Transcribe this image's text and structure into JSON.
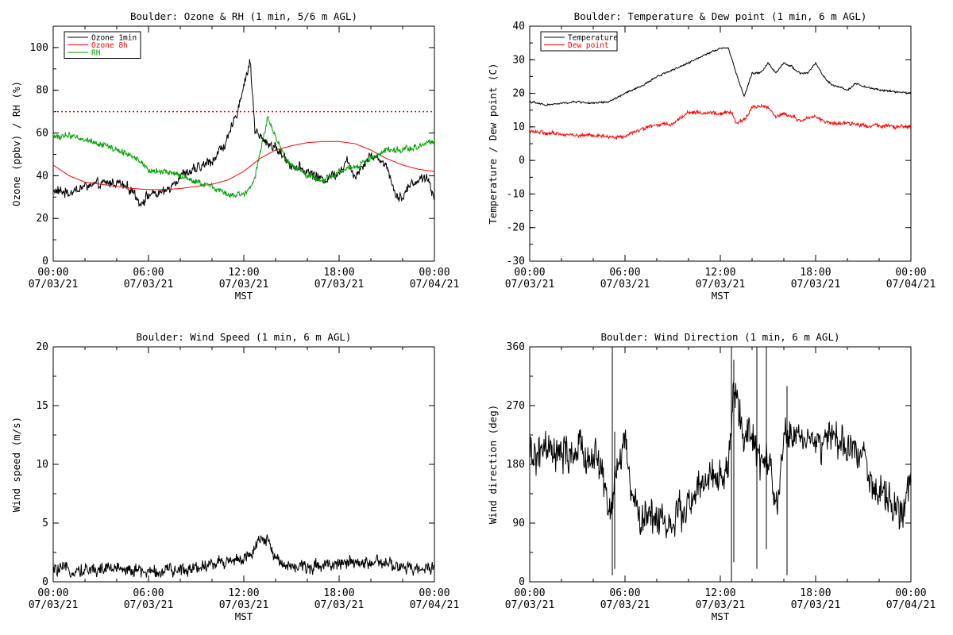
{
  "chart_data": [
    {
      "type": "line",
      "title": "Boulder: Ozone & RH (1 min, 5/6 m AGL)",
      "ylabel": "Ozone (ppbv) / RH (%)",
      "xlabel": "MST",
      "xlim": [
        0,
        24
      ],
      "ylim": [
        0,
        110
      ],
      "yticks": [
        0,
        20,
        40,
        60,
        80,
        100
      ],
      "xticks": [
        {
          "t": 0,
          "time": "00:00",
          "date": "07/03/21"
        },
        {
          "t": 6,
          "time": "06:00",
          "date": "07/03/21"
        },
        {
          "t": 12,
          "time": "12:00",
          "date": "07/03/21"
        },
        {
          "t": 18,
          "time": "18:00",
          "date": "07/03/21"
        },
        {
          "t": 24,
          "time": "00:00",
          "date": "07/04/21"
        }
      ],
      "legend": "top-left",
      "reference_line": {
        "y": 70,
        "color": "#ff0000",
        "style": "dotted"
      },
      "series": [
        {
          "name": "Ozone 1min",
          "color": "#000000",
          "noise": 2.5,
          "points": [
            [
              0,
              33
            ],
            [
              1,
              32
            ],
            [
              2,
              35
            ],
            [
              3,
              36
            ],
            [
              4,
              37
            ],
            [
              5,
              33
            ],
            [
              5.5,
              27
            ],
            [
              6,
              31
            ],
            [
              7,
              32
            ],
            [
              8,
              40
            ],
            [
              9,
              43
            ],
            [
              10,
              47
            ],
            [
              11,
              57
            ],
            [
              11.5,
              68
            ],
            [
              12,
              82
            ],
            [
              12.4,
              94
            ],
            [
              12.7,
              62
            ],
            [
              13,
              58
            ],
            [
              14,
              53
            ],
            [
              15,
              45
            ],
            [
              16,
              42
            ],
            [
              17,
              38
            ],
            [
              18,
              42
            ],
            [
              18.5,
              47
            ],
            [
              19,
              40
            ],
            [
              20,
              50
            ],
            [
              21,
              45
            ],
            [
              21.5,
              32
            ],
            [
              22,
              30
            ],
            [
              22.5,
              36
            ],
            [
              23,
              38
            ],
            [
              23.5,
              40
            ],
            [
              24,
              29
            ]
          ]
        },
        {
          "name": "Ozone 8h",
          "color": "#ff0000",
          "noise": 0,
          "points": [
            [
              0,
              45
            ],
            [
              1,
              40
            ],
            [
              2,
              37
            ],
            [
              3,
              36
            ],
            [
              4,
              35
            ],
            [
              5,
              34
            ],
            [
              6,
              33.5
            ],
            [
              7,
              33.5
            ],
            [
              8,
              34
            ],
            [
              9,
              35
            ],
            [
              10,
              36
            ],
            [
              11,
              38
            ],
            [
              12,
              42
            ],
            [
              13,
              48
            ],
            [
              14,
              52
            ],
            [
              15,
              54
            ],
            [
              16,
              55.5
            ],
            [
              17,
              56
            ],
            [
              18,
              56
            ],
            [
              19,
              55
            ],
            [
              20,
              52
            ],
            [
              21,
              48
            ],
            [
              22,
              45
            ],
            [
              23,
              43
            ],
            [
              24,
              42
            ]
          ]
        },
        {
          "name": "RH",
          "color": "#00a000",
          "noise": 1.5,
          "points": [
            [
              0,
              58
            ],
            [
              1,
              59
            ],
            [
              2,
              57
            ],
            [
              3,
              55
            ],
            [
              4,
              52
            ],
            [
              5,
              49
            ],
            [
              5.5,
              47
            ],
            [
              6,
              42
            ],
            [
              7,
              42
            ],
            [
              8,
              40
            ],
            [
              9,
              37
            ],
            [
              10,
              35
            ],
            [
              11,
              31
            ],
            [
              12,
              31
            ],
            [
              12.6,
              36
            ],
            [
              13,
              50
            ],
            [
              13.5,
              67
            ],
            [
              14,
              58
            ],
            [
              14.5,
              50
            ],
            [
              15,
              45
            ],
            [
              16,
              40
            ],
            [
              17,
              38
            ],
            [
              18,
              42
            ],
            [
              19,
              44
            ],
            [
              20,
              48
            ],
            [
              21,
              52
            ],
            [
              22,
              52
            ],
            [
              23,
              54
            ],
            [
              24,
              56
            ]
          ]
        }
      ]
    },
    {
      "type": "line",
      "title": "Boulder: Temperature & Dew point (1 min, 6 m AGL)",
      "ylabel": "Temperature / Dew point (C)",
      "xlabel": "MST",
      "xlim": [
        0,
        24
      ],
      "ylim": [
        -30,
        40
      ],
      "yticks": [
        -30,
        -20,
        -10,
        0,
        10,
        20,
        30,
        40
      ],
      "xticks": [
        {
          "t": 0,
          "time": "00:00",
          "date": "07/03/21"
        },
        {
          "t": 6,
          "time": "06:00",
          "date": "07/03/21"
        },
        {
          "t": 12,
          "time": "12:00",
          "date": "07/03/21"
        },
        {
          "t": 18,
          "time": "18:00",
          "date": "07/03/21"
        },
        {
          "t": 24,
          "time": "00:00",
          "date": "07/04/21"
        }
      ],
      "legend": "top-left",
      "series": [
        {
          "name": "Temperature",
          "color": "#000000",
          "noise": 0.3,
          "points": [
            [
              0,
              17.5
            ],
            [
              1,
              16.5
            ],
            [
              2,
              17
            ],
            [
              3,
              17.5
            ],
            [
              4,
              17
            ],
            [
              5,
              17.5
            ],
            [
              6,
              20
            ],
            [
              7,
              22
            ],
            [
              8,
              25
            ],
            [
              9,
              27
            ],
            [
              10,
              29
            ],
            [
              11,
              31.5
            ],
            [
              12,
              33.5
            ],
            [
              12.5,
              33.5
            ],
            [
              13,
              26
            ],
            [
              13.5,
              19
            ],
            [
              14,
              26
            ],
            [
              14.5,
              26
            ],
            [
              15,
              29
            ],
            [
              15.5,
              26
            ],
            [
              16,
              29
            ],
            [
              16.5,
              28
            ],
            [
              17,
              26
            ],
            [
              17.5,
              26
            ],
            [
              18,
              29
            ],
            [
              18.5,
              25
            ],
            [
              19,
              22.5
            ],
            [
              20,
              21
            ],
            [
              20.5,
              23
            ],
            [
              21,
              22
            ],
            [
              22,
              21
            ],
            [
              23,
              20.5
            ],
            [
              24,
              20
            ]
          ]
        },
        {
          "name": "Dew point",
          "color": "#ff0000",
          "noise": 0.6,
          "points": [
            [
              0,
              9
            ],
            [
              1,
              8
            ],
            [
              2,
              8
            ],
            [
              3,
              7.5
            ],
            [
              4,
              7.5
            ],
            [
              5,
              7
            ],
            [
              6,
              7
            ],
            [
              7,
              9.5
            ],
            [
              8,
              10.5
            ],
            [
              9,
              11
            ],
            [
              10,
              14.5
            ],
            [
              11,
              14
            ],
            [
              12,
              14
            ],
            [
              12.7,
              14.5
            ],
            [
              13,
              11
            ],
            [
              13.5,
              12
            ],
            [
              14,
              16
            ],
            [
              15,
              16
            ],
            [
              15.5,
              13
            ],
            [
              16,
              14
            ],
            [
              17,
              12
            ],
            [
              18,
              13
            ],
            [
              19,
              11
            ],
            [
              20,
              11
            ],
            [
              21,
              10.5
            ],
            [
              22,
              10.5
            ],
            [
              23,
              10
            ],
            [
              24,
              10
            ]
          ]
        }
      ]
    },
    {
      "type": "line",
      "title": "Boulder: Wind Speed (1 min, 6 m AGL)",
      "ylabel": "Wind speed (m/s)",
      "xlabel": "MST",
      "xlim": [
        0,
        24
      ],
      "ylim": [
        0,
        20
      ],
      "yticks": [
        0,
        5,
        10,
        15,
        20
      ],
      "xticks": [
        {
          "t": 0,
          "time": "00:00",
          "date": "07/03/21"
        },
        {
          "t": 6,
          "time": "06:00",
          "date": "07/03/21"
        },
        {
          "t": 12,
          "time": "12:00",
          "date": "07/03/21"
        },
        {
          "t": 18,
          "time": "18:00",
          "date": "07/03/21"
        },
        {
          "t": 24,
          "time": "00:00",
          "date": "07/04/21"
        }
      ],
      "series": [
        {
          "color": "#000000",
          "noise": 0.6,
          "points": [
            [
              0,
              1
            ],
            [
              2,
              1
            ],
            [
              4,
              1.2
            ],
            [
              5,
              1
            ],
            [
              6,
              0.8
            ],
            [
              8,
              1
            ],
            [
              9,
              1.3
            ],
            [
              10,
              1.5
            ],
            [
              11,
              1.8
            ],
            [
              12,
              2
            ],
            [
              12.5,
              2.2
            ],
            [
              13,
              3.5
            ],
            [
              13.5,
              3.5
            ],
            [
              14,
              2
            ],
            [
              15,
              1.3
            ],
            [
              16,
              1.2
            ],
            [
              17,
              1.5
            ],
            [
              18,
              1.6
            ],
            [
              19,
              1.5
            ],
            [
              20,
              1.7
            ],
            [
              21,
              1.5
            ],
            [
              22,
              1.2
            ],
            [
              23,
              1
            ],
            [
              24,
              1.5
            ]
          ]
        }
      ]
    },
    {
      "type": "line",
      "title": "Boulder: Wind Direction (1 min, 6 m AGL)",
      "ylabel": "Wind direction (deg)",
      "xlabel": "MST",
      "xlim": [
        0,
        24
      ],
      "ylim": [
        0,
        360
      ],
      "yticks": [
        0,
        90,
        180,
        270,
        360
      ],
      "xticks": [
        {
          "t": 0,
          "time": "00:00",
          "date": "07/03/21"
        },
        {
          "t": 6,
          "time": "06:00",
          "date": "07/03/21"
        },
        {
          "t": 12,
          "time": "12:00",
          "date": "07/03/21"
        },
        {
          "t": 18,
          "time": "18:00",
          "date": "07/03/21"
        },
        {
          "t": 24,
          "time": "00:00",
          "date": "07/04/21"
        }
      ],
      "series": [
        {
          "color": "#000000",
          "noise": 30,
          "points": [
            [
              0,
              190
            ],
            [
              1,
              200
            ],
            [
              2,
              190
            ],
            [
              3,
              200
            ],
            [
              4,
              190
            ],
            [
              4.5,
              180
            ],
            [
              5,
              100
            ],
            [
              5.5,
              170
            ],
            [
              6,
              220
            ],
            [
              6.5,
              120
            ],
            [
              7,
              100
            ],
            [
              8,
              100
            ],
            [
              9,
              90
            ],
            [
              10,
              120
            ],
            [
              11,
              150
            ],
            [
              12,
              160
            ],
            [
              12.5,
              170
            ],
            [
              12.8,
              280
            ],
            [
              13,
              290
            ],
            [
              13.5,
              220
            ],
            [
              14,
              220
            ],
            [
              14.5,
              180
            ],
            [
              15,
              190
            ],
            [
              15.5,
              100
            ],
            [
              16,
              220
            ],
            [
              17,
              230
            ],
            [
              18,
              210
            ],
            [
              19,
              220
            ],
            [
              20,
              200
            ],
            [
              21,
              210
            ],
            [
              21.5,
              150
            ],
            [
              22,
              130
            ],
            [
              23,
              120
            ],
            [
              23.5,
              100
            ],
            [
              24,
              150
            ]
          ]
        },
        {
          "color": "#000000",
          "noise": 0,
          "style": "spikes",
          "points": [
            [
              5.2,
              10
            ],
            [
              5.2,
              360
            ],
            [
              5.35,
              20
            ],
            [
              5.35,
              230
            ],
            [
              12.7,
              0
            ],
            [
              12.7,
              360
            ],
            [
              12.85,
              30
            ],
            [
              12.85,
              340
            ],
            [
              14.3,
              20
            ],
            [
              14.3,
              360
            ],
            [
              14.9,
              50
            ],
            [
              14.9,
              360
            ],
            [
              16.2,
              10
            ],
            [
              16.2,
              300
            ]
          ]
        }
      ]
    }
  ]
}
